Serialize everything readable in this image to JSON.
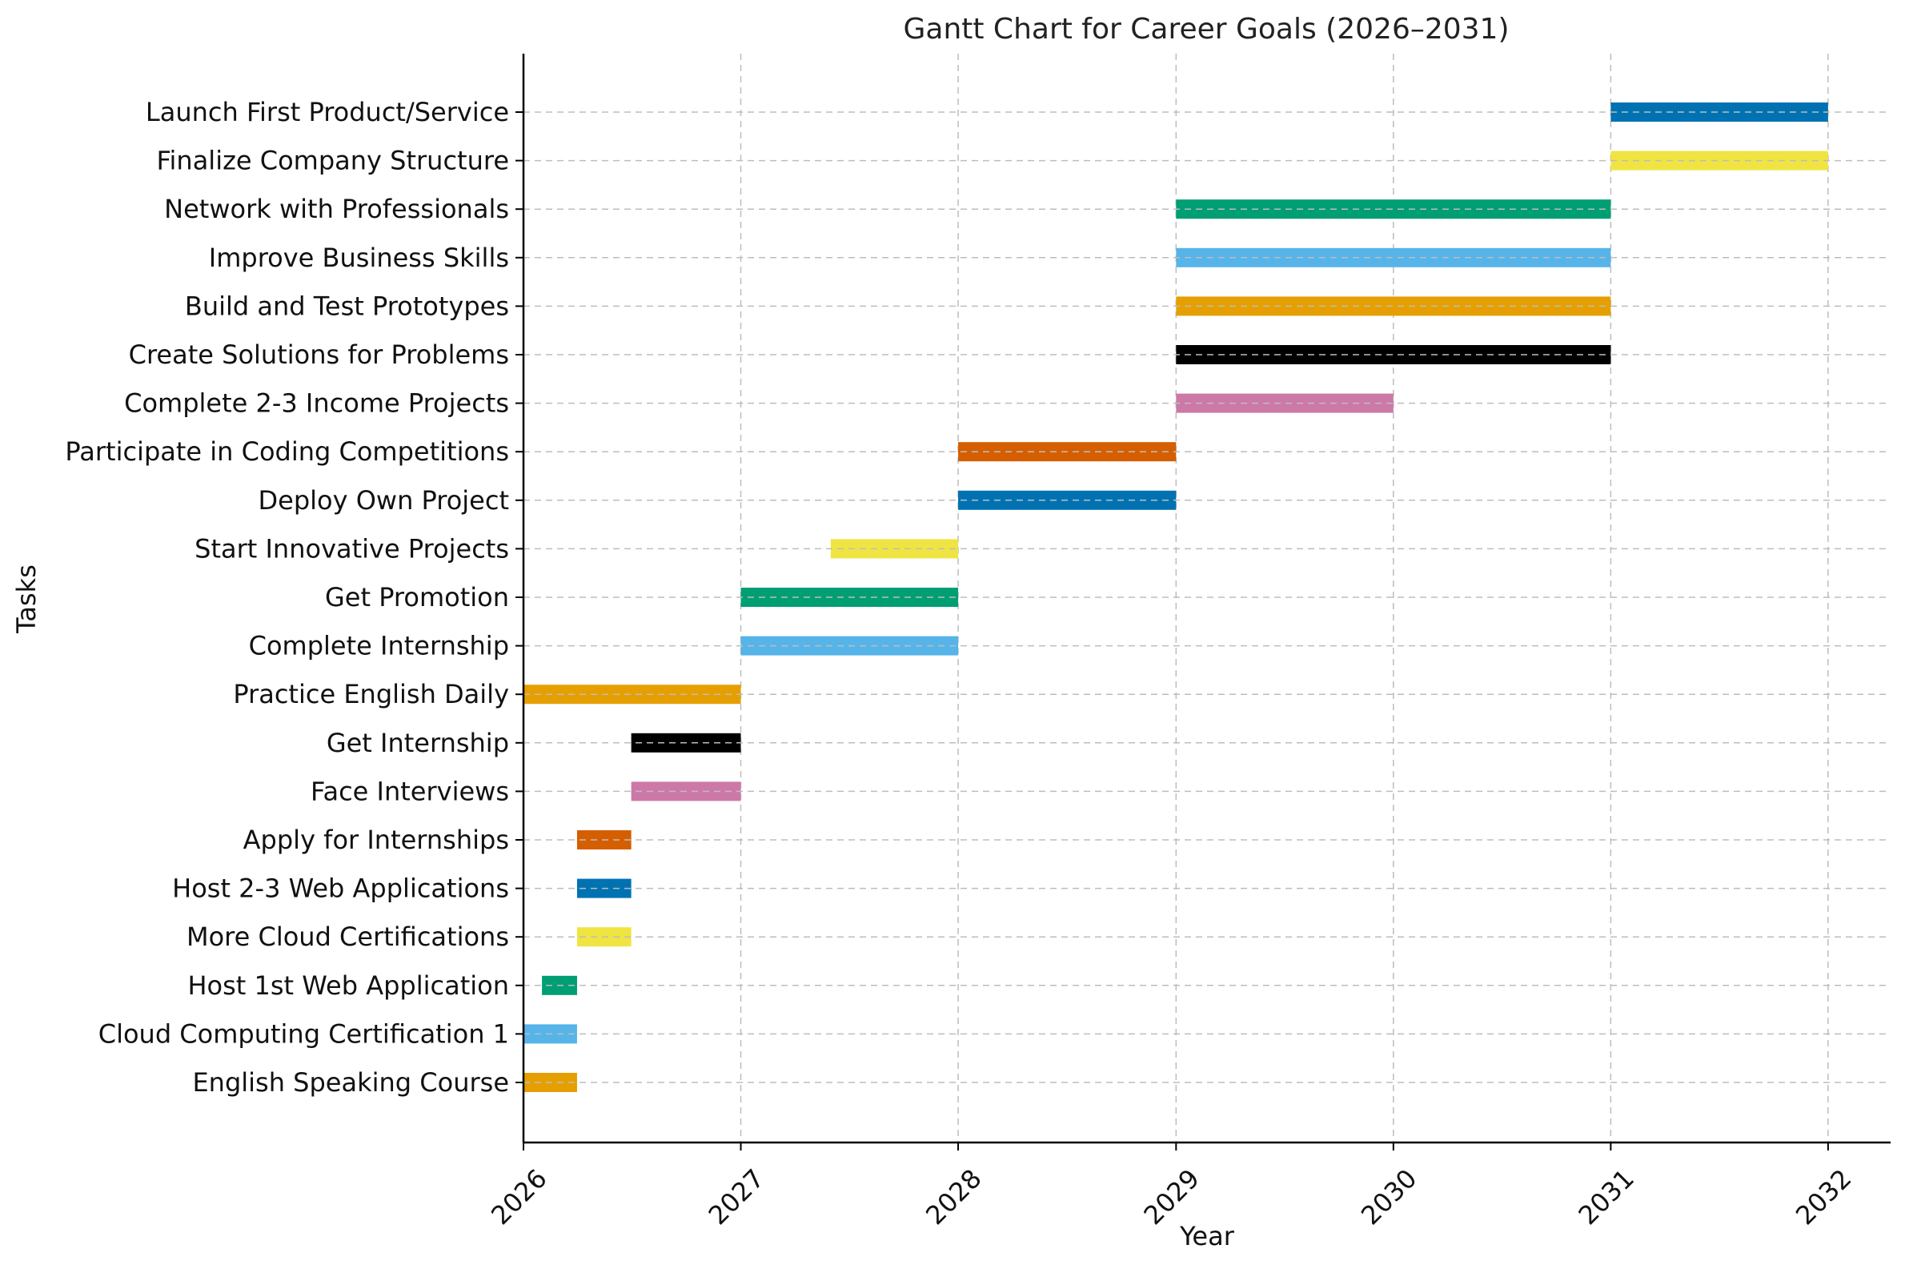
{
  "chart_data": {
    "type": "gantt",
    "title": "Gantt Chart for Career Goals (2026–2031)",
    "xlabel": "Year",
    "ylabel": "Tasks",
    "xlim": [
      "2026-01-01",
      "2032-04-15"
    ],
    "x_ticks": [
      "2026",
      "2027",
      "2028",
      "2029",
      "2030",
      "2031",
      "2032"
    ],
    "grid": true,
    "tasks": [
      {
        "name": "English Speaking Course",
        "start": "2026-01-01",
        "end": "2026-03-31",
        "color": "#E69F00"
      },
      {
        "name": "Cloud Computing Certification 1",
        "start": "2026-01-01",
        "end": "2026-03-31",
        "color": "#56B4E9"
      },
      {
        "name": "Host 1st Web Application",
        "start": "2026-02-01",
        "end": "2026-03-31",
        "color": "#009E73"
      },
      {
        "name": "More Cloud Certifications",
        "start": "2026-04-01",
        "end": "2026-06-30",
        "color": "#F0E442"
      },
      {
        "name": "Host 2-3 Web Applications",
        "start": "2026-04-01",
        "end": "2026-06-30",
        "color": "#0072B2"
      },
      {
        "name": "Apply for Internships",
        "start": "2026-04-01",
        "end": "2026-06-30",
        "color": "#D55E00"
      },
      {
        "name": "Face Interviews",
        "start": "2026-07-01",
        "end": "2026-12-31",
        "color": "#CC79A7"
      },
      {
        "name": "Get Internship",
        "start": "2026-07-01",
        "end": "2026-12-31",
        "color": "#000000"
      },
      {
        "name": "Practice English Daily",
        "start": "2026-01-01",
        "end": "2026-12-31",
        "color": "#E69F00"
      },
      {
        "name": "Complete Internship",
        "start": "2027-01-01",
        "end": "2027-12-31",
        "color": "#56B4E9"
      },
      {
        "name": "Get Promotion",
        "start": "2027-01-01",
        "end": "2027-12-31",
        "color": "#009E73"
      },
      {
        "name": "Start Innovative Projects",
        "start": "2027-06-01",
        "end": "2027-12-31",
        "color": "#F0E442"
      },
      {
        "name": "Deploy Own Project",
        "start": "2028-01-01",
        "end": "2028-12-31",
        "color": "#0072B2"
      },
      {
        "name": "Participate in Coding Competitions",
        "start": "2028-01-01",
        "end": "2028-12-31",
        "color": "#D55E00"
      },
      {
        "name": "Complete 2-3 Income Projects",
        "start": "2029-01-01",
        "end": "2029-12-31",
        "color": "#CC79A7"
      },
      {
        "name": "Create Solutions for Problems",
        "start": "2029-01-01",
        "end": "2030-12-31",
        "color": "#000000"
      },
      {
        "name": "Build and Test Prototypes",
        "start": "2029-01-01",
        "end": "2030-12-31",
        "color": "#E69F00"
      },
      {
        "name": "Improve Business Skills",
        "start": "2029-01-01",
        "end": "2030-12-31",
        "color": "#56B4E9"
      },
      {
        "name": "Network with Professionals",
        "start": "2029-01-01",
        "end": "2030-12-31",
        "color": "#009E73"
      },
      {
        "name": "Finalize Company Structure",
        "start": "2031-01-01",
        "end": "2031-12-31",
        "color": "#F0E442"
      },
      {
        "name": "Launch First Product/Service",
        "start": "2031-01-01",
        "end": "2031-12-31",
        "color": "#0072B2"
      }
    ]
  }
}
